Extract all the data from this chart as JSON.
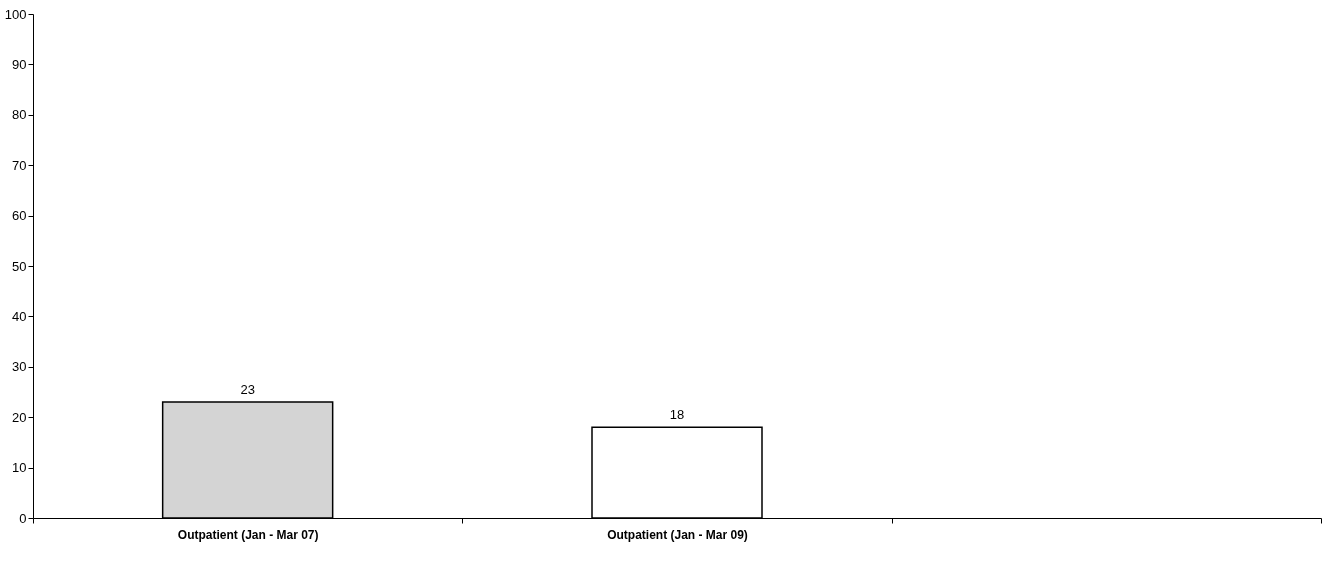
{
  "chart_data": {
    "type": "bar",
    "categories": [
      "Outpatient (Jan - Mar 07)",
      "Outpatient (Jan - Mar 09)",
      null
    ],
    "values": [
      23,
      18,
      null
    ],
    "colors": [
      "#d4d4d4",
      "#ffffff",
      "#ffffff"
    ],
    "ylim": [
      0,
      100
    ],
    "yticks": [
      0,
      10,
      20,
      30,
      40,
      50,
      60,
      70,
      80,
      90,
      100
    ],
    "data_labels": true,
    "grid": false
  }
}
